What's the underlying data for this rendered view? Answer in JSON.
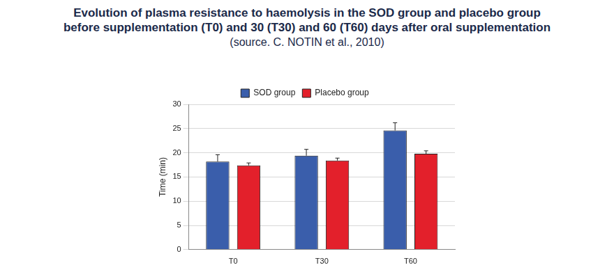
{
  "chart_data": {
    "type": "bar",
    "title": "Evolution of plasma resistance to haemolysis in the SOD group and placebo group before supplementation (T0) and 30 (T30) and 60 (T60) days after oral supplementation",
    "subtitle": "(source. C. NOTIN et al., 2010)",
    "y_label": "Time (min)",
    "categories": [
      "T0",
      "T30",
      "T60"
    ],
    "series": [
      {
        "name": "SOD group",
        "color": "#3a5eab",
        "values": [
          18.2,
          19.4,
          24.6
        ],
        "errors": [
          1.4,
          1.3,
          1.6
        ]
      },
      {
        "name": "Placebo group",
        "color": "#e3202b",
        "values": [
          17.4,
          18.4,
          19.8
        ],
        "errors": [
          0.5,
          0.5,
          0.6
        ]
      }
    ],
    "ylim": [
      0,
      30
    ],
    "yticks": [
      0,
      5,
      10,
      15,
      20,
      25,
      30
    ],
    "grid": true,
    "legend": "top"
  }
}
